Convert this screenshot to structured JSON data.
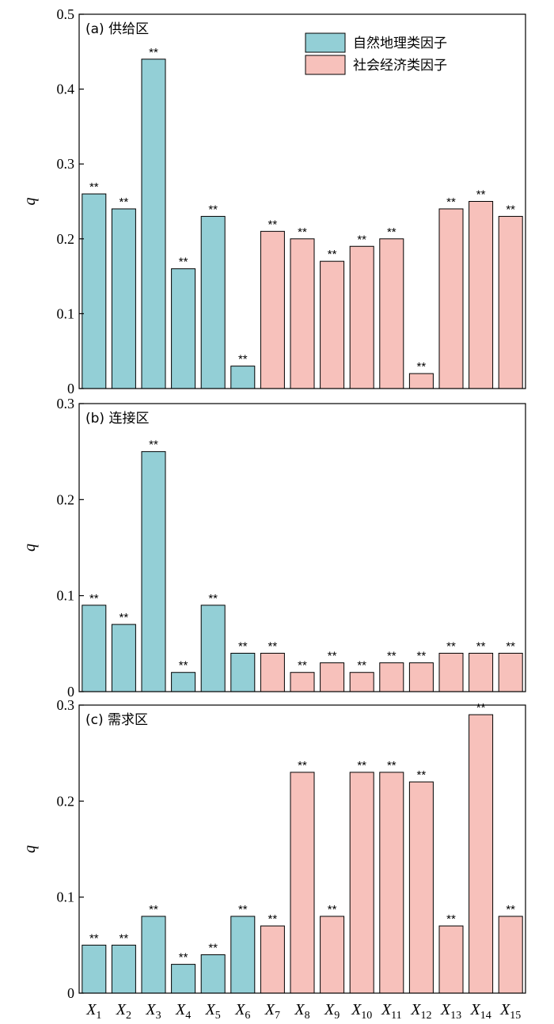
{
  "colors": {
    "natural": "#93cfd6",
    "social": "#f7c1bb",
    "stroke": "#000000"
  },
  "legend": [
    {
      "label": "自然地理类因子",
      "group": "natural"
    },
    {
      "label": "社会经济类因子",
      "group": "social"
    }
  ],
  "x_tick_labels": [
    {
      "base": "X",
      "sub": "1"
    },
    {
      "base": "X",
      "sub": "2"
    },
    {
      "base": "X",
      "sub": "3"
    },
    {
      "base": "X",
      "sub": "4"
    },
    {
      "base": "X",
      "sub": "5"
    },
    {
      "base": "X",
      "sub": "6"
    },
    {
      "base": "X",
      "sub": "7"
    },
    {
      "base": "X",
      "sub": "8"
    },
    {
      "base": "X",
      "sub": "9"
    },
    {
      "base": "X",
      "sub": "10"
    },
    {
      "base": "X",
      "sub": "11"
    },
    {
      "base": "X",
      "sub": "12"
    },
    {
      "base": "X",
      "sub": "13"
    },
    {
      "base": "X",
      "sub": "14"
    },
    {
      "base": "X",
      "sub": "15"
    }
  ],
  "chart_data": [
    {
      "type": "bar",
      "title": "(a) 供给区",
      "ylabel": "q",
      "ylim": [
        0,
        0.5
      ],
      "yticks": [
        "0",
        "0.1",
        "0.2",
        "0.3",
        "0.4",
        "0.5"
      ],
      "categories": [
        "X1",
        "X2",
        "X3",
        "X4",
        "X5",
        "X6",
        "X7",
        "X8",
        "X9",
        "X10",
        "X11",
        "X12",
        "X13",
        "X14",
        "X15"
      ],
      "groups": [
        "natural",
        "natural",
        "natural",
        "natural",
        "natural",
        "natural",
        "social",
        "social",
        "social",
        "social",
        "social",
        "social",
        "social",
        "social",
        "social"
      ],
      "values": [
        0.26,
        0.24,
        0.44,
        0.16,
        0.23,
        0.03,
        0.21,
        0.2,
        0.17,
        0.19,
        0.2,
        0.02,
        0.24,
        0.25,
        0.23
      ],
      "annotations": [
        "**",
        "**",
        "**",
        "**",
        "**",
        "**",
        "**",
        "**",
        "**",
        "**",
        "**",
        "**",
        "**",
        "**",
        "**"
      ],
      "legend": "top-right"
    },
    {
      "type": "bar",
      "title": "(b) 连接区",
      "ylabel": "q",
      "ylim": [
        0,
        0.3
      ],
      "yticks": [
        "0",
        "0.1",
        "0.2",
        "0.3"
      ],
      "categories": [
        "X1",
        "X2",
        "X3",
        "X4",
        "X5",
        "X6",
        "X7",
        "X8",
        "X9",
        "X10",
        "X11",
        "X12",
        "X13",
        "X14",
        "X15"
      ],
      "groups": [
        "natural",
        "natural",
        "natural",
        "natural",
        "natural",
        "natural",
        "social",
        "social",
        "social",
        "social",
        "social",
        "social",
        "social",
        "social",
        "social"
      ],
      "values": [
        0.09,
        0.07,
        0.25,
        0.02,
        0.09,
        0.04,
        0.04,
        0.02,
        0.03,
        0.02,
        0.03,
        0.03,
        0.04,
        0.04,
        0.04
      ],
      "annotations": [
        "**",
        "**",
        "**",
        "**",
        "**",
        "**",
        "**",
        "**",
        "**",
        "**",
        "**",
        "**",
        "**",
        "**",
        "**"
      ]
    },
    {
      "type": "bar",
      "title": "(c) 需求区",
      "ylabel": "q",
      "ylim": [
        0,
        0.3
      ],
      "yticks": [
        "0",
        "0.1",
        "0.2",
        "0.3"
      ],
      "categories": [
        "X1",
        "X2",
        "X3",
        "X4",
        "X5",
        "X6",
        "X7",
        "X8",
        "X9",
        "X10",
        "X11",
        "X12",
        "X13",
        "X14",
        "X15"
      ],
      "groups": [
        "natural",
        "natural",
        "natural",
        "natural",
        "natural",
        "natural",
        "social",
        "social",
        "social",
        "social",
        "social",
        "social",
        "social",
        "social",
        "social"
      ],
      "values": [
        0.05,
        0.05,
        0.08,
        0.03,
        0.04,
        0.08,
        0.07,
        0.23,
        0.08,
        0.23,
        0.23,
        0.22,
        0.07,
        0.29,
        0.08
      ],
      "annotations": [
        "**",
        "**",
        "**",
        "**",
        "**",
        "**",
        "**",
        "**",
        "**",
        "**",
        "**",
        "**",
        "**",
        "**",
        "**"
      ]
    }
  ]
}
